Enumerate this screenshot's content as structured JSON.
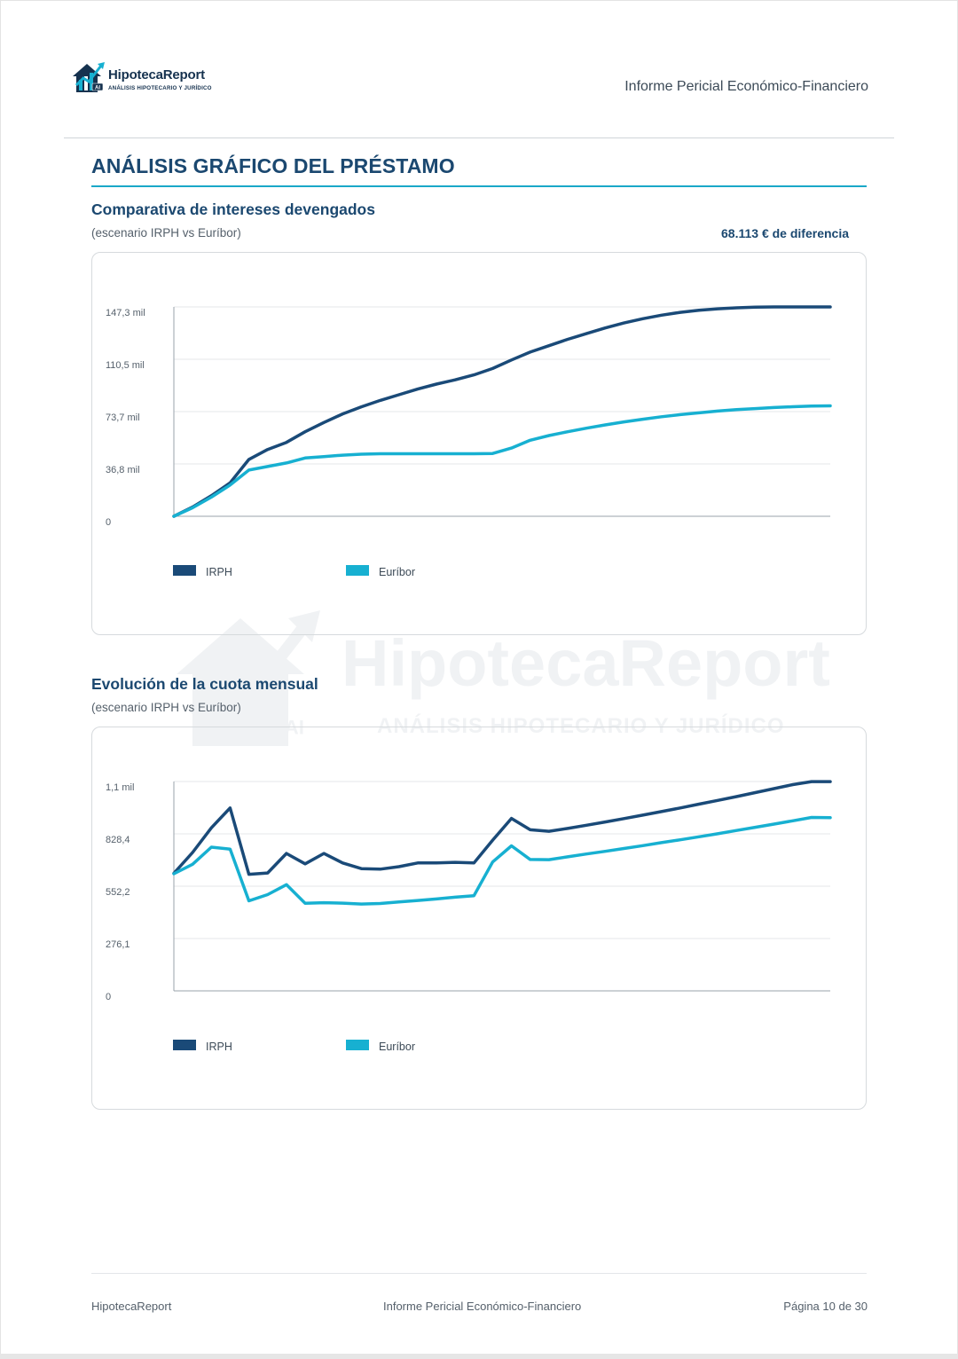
{
  "header": {
    "logo_name": "HipotecaReport",
    "logo_tagline": "ANÁLISIS HIPOTECARIO Y JURÍDICO",
    "logo_badge": "AI",
    "document_title": "Informe Pericial Económico-Financiero"
  },
  "section": {
    "title": "ANÁLISIS GRÁFICO DEL PRÉSTAMO"
  },
  "watermark": {
    "name": "HipotecaReport",
    "tagline": "ANÁLISIS HIPOTECARIO Y JURÍDICO",
    "badge": "AI"
  },
  "chart_data": [
    {
      "type": "line",
      "title": "Comparativa de intereses devengados",
      "subtitle": "(escenario IRPH vs Euríbor)",
      "annotation": "68.113 € de diferencia",
      "y_ticks": [
        "0",
        "36,8 mil",
        "73,7 mil",
        "110,5 mil",
        "147,3 mil"
      ],
      "ylim": [
        0,
        147300
      ],
      "x": [
        0,
        1,
        2,
        3,
        4,
        5,
        6,
        7,
        8,
        9,
        10,
        11,
        12,
        13,
        14,
        15,
        16,
        17,
        18,
        19,
        20,
        21,
        22,
        23,
        24,
        25,
        26,
        27,
        28,
        29,
        30,
        31,
        32,
        33,
        34,
        35
      ],
      "series": [
        {
          "name": "IRPH",
          "color": "#1a4a78",
          "values": [
            0,
            6500,
            14500,
            23500,
            40000,
            47000,
            52000,
            59500,
            66000,
            72000,
            77000,
            81500,
            85500,
            89500,
            93000,
            96000,
            99500,
            104000,
            110000,
            115500,
            120000,
            124500,
            128500,
            132500,
            136000,
            139000,
            141500,
            143500,
            145000,
            146000,
            146700,
            147100,
            147300,
            147300,
            147300,
            147300
          ]
        },
        {
          "name": "Euríbor",
          "color": "#17b0d1",
          "values": [
            0,
            6000,
            13500,
            22000,
            32500,
            35000,
            37500,
            41000,
            42000,
            43000,
            43700,
            44000,
            44000,
            44000,
            44000,
            44000,
            44000,
            44200,
            48000,
            53500,
            56800,
            59500,
            62000,
            64300,
            66400,
            68300,
            70000,
            71500,
            72800,
            74000,
            75000,
            75800,
            76500,
            77100,
            77500,
            77700
          ]
        }
      ],
      "legend_position": "bottom-left",
      "grid": true
    },
    {
      "type": "line",
      "title": "Evolución de la cuota mensual",
      "subtitle": "(escenario IRPH vs Euríbor)",
      "y_ticks": [
        "0",
        "276,1",
        "552,2",
        "828,4",
        "1,1 mil"
      ],
      "ylim": [
        0,
        1104.5
      ],
      "x": [
        0,
        1,
        2,
        3,
        4,
        5,
        6,
        7,
        8,
        9,
        10,
        11,
        12,
        13,
        14,
        15,
        16,
        17,
        18,
        19,
        20,
        21,
        22,
        23,
        24,
        25,
        26,
        27,
        28,
        29,
        30,
        31,
        32,
        33,
        34,
        35
      ],
      "series": [
        {
          "name": "IRPH",
          "color": "#1a4a78",
          "values": [
            620,
            730,
            860,
            965,
            615,
            622,
            725,
            670,
            725,
            675,
            645,
            642,
            655,
            675,
            675,
            678,
            675,
            795,
            910,
            850,
            842,
            857,
            874,
            891,
            909,
            927,
            946,
            965,
            985,
            1005,
            1025,
            1046,
            1067,
            1088,
            1104,
            1104
          ]
        },
        {
          "name": "Euríbor",
          "color": "#17b0d1",
          "values": [
            618,
            668,
            758,
            748,
            475,
            508,
            560,
            462,
            465,
            463,
            458,
            461,
            469,
            477,
            485,
            494,
            502,
            680,
            765,
            693,
            692,
            707,
            722,
            736,
            751,
            766,
            782,
            797,
            813,
            829,
            846,
            863,
            880,
            897,
            915,
            914
          ]
        }
      ],
      "legend_position": "bottom-left",
      "grid": true
    }
  ],
  "footer": {
    "left": "HipotecaReport",
    "center": "Informe Pericial Económico-Financiero",
    "right": "Página 10 de 30"
  }
}
